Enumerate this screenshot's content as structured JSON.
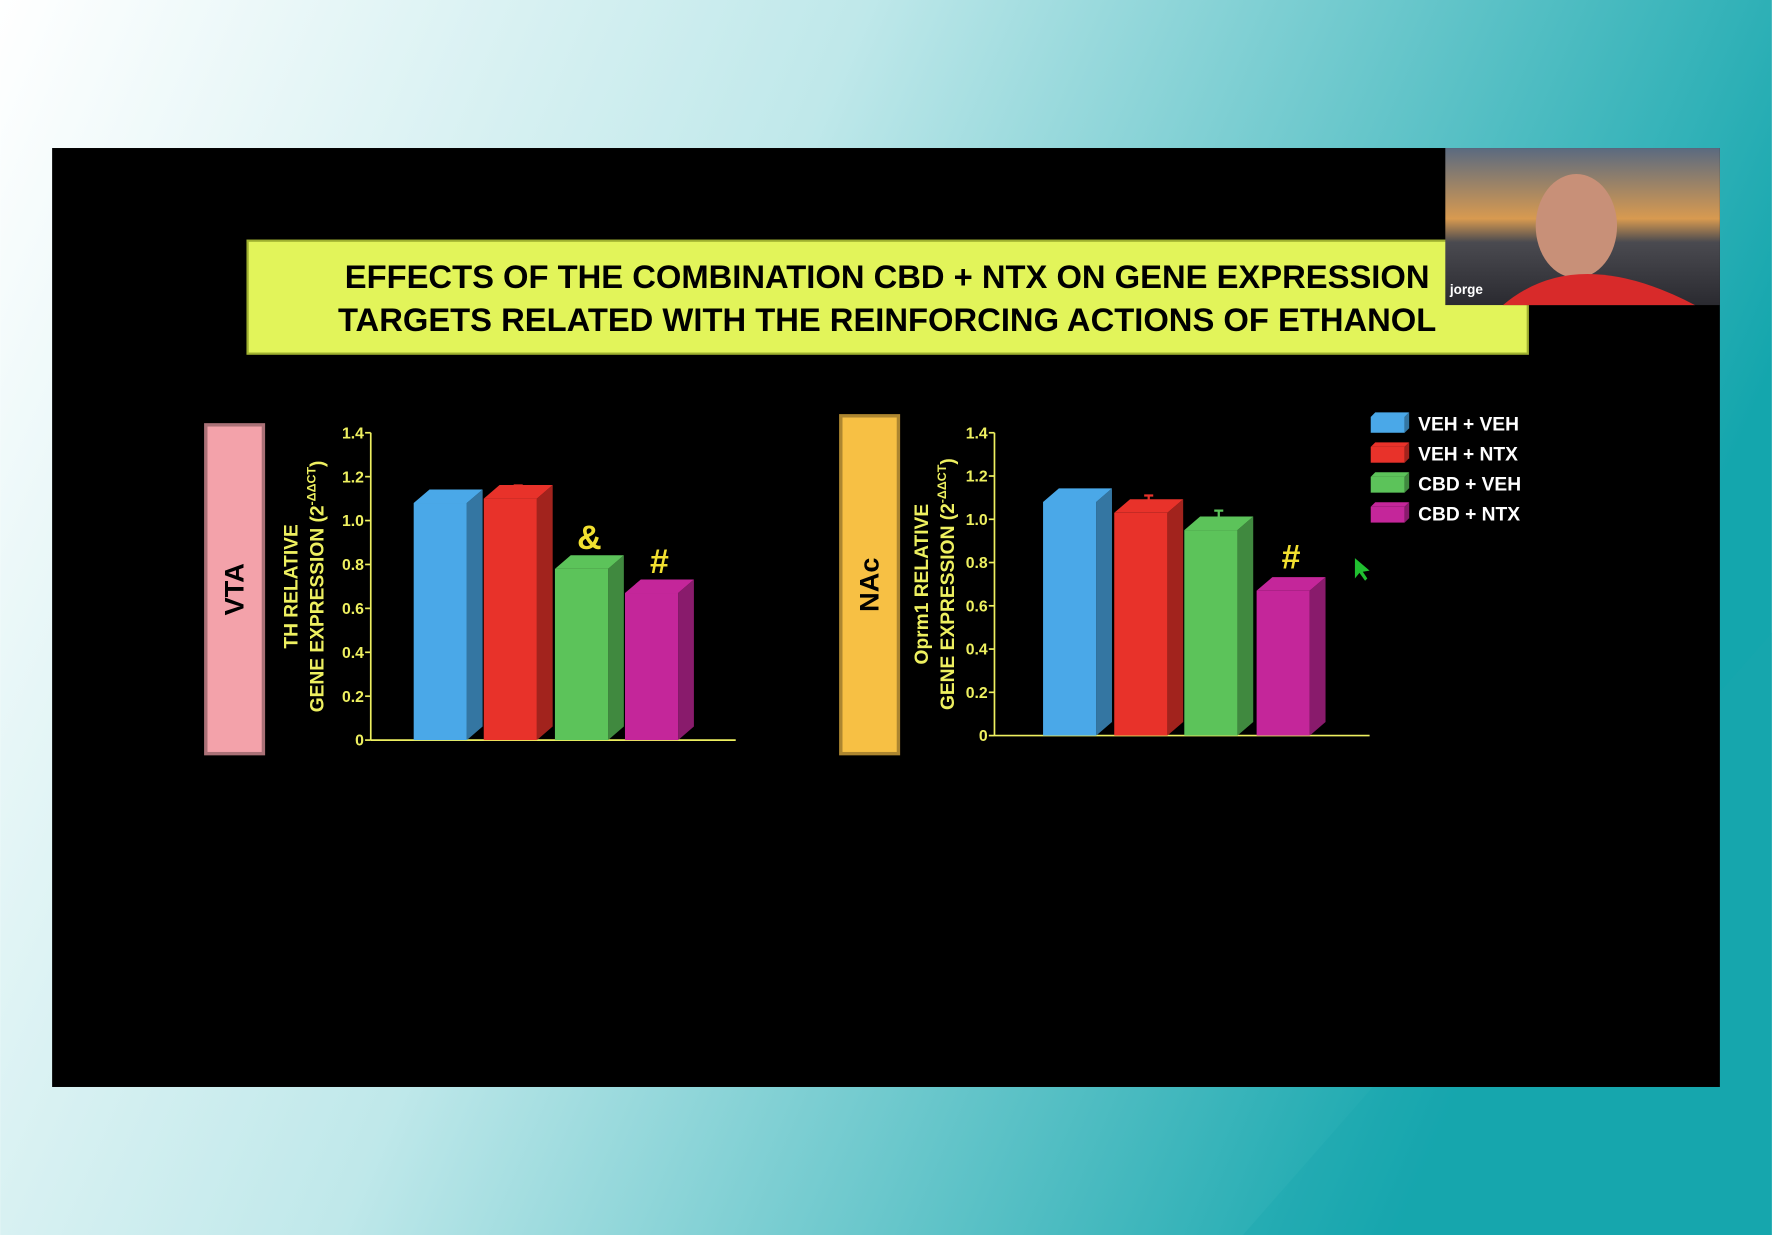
{
  "slide": {
    "title": [
      "EFFECTS OF THE COMBINATION CBD + NTX ON GENE EXPRESSION",
      "TARGETS RELATED WITH THE REINFORCING ACTIONS OF ETHANOL"
    ]
  },
  "legend": [
    {
      "name": "VEH + VEH",
      "color": "#4aa8e8"
    },
    {
      "name": "VEH + NTX",
      "color": "#e8322a"
    },
    {
      "name": "CBD + VEH",
      "color": "#5cc35a"
    },
    {
      "name": "CBD + NTX",
      "color": "#c4269a"
    }
  ],
  "chart_data": [
    {
      "type": "bar",
      "region": "VTA",
      "region_color": "#f3a2aa",
      "ylabel": [
        "TH RELATIVE",
        "GENE EXPRESSION (2",
        "-ΔΔCT",
        ")"
      ],
      "values": [
        1.08,
        1.1,
        0.78,
        0.67
      ],
      "errors": [
        0.04,
        0.06,
        0.04,
        0.04
      ],
      "annotations": [
        null,
        null,
        "&",
        "#"
      ],
      "ylim": [
        0,
        1.4
      ],
      "yticks": [
        0,
        0.2,
        0.4,
        0.6,
        0.8,
        {
          "value": 1,
          "label": "1.0"
        },
        1.2,
        1.4
      ]
    },
    {
      "type": "bar",
      "region": "NAc",
      "region_color": "#f7c044",
      "ylabel": [
        "Oprm1 RELATIVE",
        "GENE EXPRESSION (2",
        "-ΔΔCT",
        ")"
      ],
      "values": [
        1.08,
        1.03,
        0.95,
        0.67
      ],
      "errors": [
        0.05,
        0.08,
        0.09,
        0.05
      ],
      "annotations": [
        null,
        null,
        null,
        "#"
      ],
      "ylim": [
        0,
        1.4
      ],
      "yticks": [
        0,
        0.2,
        0.4,
        0.6,
        0.8,
        {
          "value": 1,
          "label": "1.0"
        },
        1.2,
        1.4
      ]
    }
  ],
  "participant": "jorge"
}
